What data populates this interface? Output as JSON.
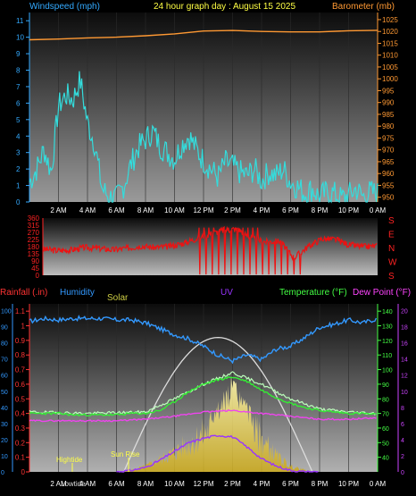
{
  "header": {
    "windspeed_label": "Windspeed (mph)",
    "title": "24 hour graph day : August 15 2025",
    "barometer_label": "Barometer (mb)"
  },
  "colors": {
    "wind_label": "#33aaff",
    "title": "#ffff44",
    "baro_label": "#ff9933",
    "wind_line": "#33dddd",
    "baro_line": "#ff9933",
    "direction": "#ff2222",
    "rain_label": "#ff3333",
    "humidity": "#3399ff",
    "solar": "#cccc44",
    "uv": "#9933ff",
    "temperature": "#44ff44",
    "dewpoint": "#ff44ff"
  },
  "legend": {
    "rainfall": "Rainfall (.in)",
    "humidity": "Humidity",
    "solar": "Solar",
    "uv": "UV",
    "temperature": "Temperature (°F)",
    "dewpoint": "Dew Point (°F)"
  },
  "annotations": {
    "hightide": "Hightide",
    "sunrise": "Sun Rise",
    "lowtide": "Lowtide"
  },
  "chart_data": [
    {
      "type": "line",
      "name_ref": "wind",
      "x_ticks": [
        "2 AM",
        "4 AM",
        "6 AM",
        "8 AM",
        "10 AM",
        "12 PM",
        "2 PM",
        "4 PM",
        "6 PM",
        "8 PM",
        "10 PM",
        "0 AM"
      ],
      "left_axis": {
        "label": "Windspeed (mph)",
        "ticks": [
          0,
          1,
          2,
          3,
          4,
          5,
          6,
          7,
          8,
          9,
          10,
          11
        ],
        "ylim": [
          0,
          11.5
        ]
      },
      "right_axis": {
        "label": "Barometer (mb)",
        "ticks": [
          950,
          955,
          960,
          965,
          970,
          975,
          980,
          985,
          990,
          995,
          1000,
          1005,
          1010,
          1015,
          1020,
          1025
        ],
        "ylim": [
          948,
          1028
        ]
      },
      "series": [
        {
          "id": "wind",
          "hours": [
            0,
            0.5,
            1,
            1.5,
            2,
            2.5,
            3,
            3.5,
            4,
            4.5,
            5,
            5.5,
            6,
            6.5,
            7,
            7.5,
            8,
            8.5,
            9,
            9.5,
            10,
            10.5,
            11,
            11.5,
            12,
            12.5,
            13,
            13.5,
            14,
            14.5,
            15,
            15.5,
            16,
            16.5,
            17,
            17.5,
            18,
            18.5,
            19,
            19.5,
            20,
            20.5,
            21,
            21.5,
            22,
            22.5,
            23,
            23.5,
            24
          ],
          "values": [
            1.2,
            2.0,
            3.2,
            1.8,
            5.8,
            6.5,
            6.2,
            7.4,
            4.8,
            3.5,
            0.8,
            0.3,
            0.2,
            1.0,
            2.3,
            3.3,
            3.8,
            4.3,
            3.4,
            3.0,
            2.6,
            3.5,
            4.0,
            3.2,
            2.5,
            2.0,
            1.5,
            2.4,
            2.2,
            1.8,
            1.6,
            2.0,
            1.3,
            1.8,
            1.6,
            2.0,
            1.2,
            0.9,
            0.5,
            0.8,
            0.3,
            0.6,
            0.5,
            0.2,
            0.4,
            0.8,
            0.3,
            0.6,
            0.5
          ]
        },
        {
          "id": "barometer",
          "hours": [
            0,
            2,
            4,
            6,
            8,
            10,
            12,
            14,
            16,
            18,
            20,
            22,
            24
          ],
          "values": [
            1016.5,
            1016.8,
            1017.3,
            1017.6,
            1018.2,
            1019.0,
            1020.2,
            1020.4,
            1020.0,
            1019.8,
            1019.8,
            1020.3,
            1020.5
          ]
        }
      ]
    },
    {
      "type": "scatter",
      "name_ref": "direction",
      "left_axis": {
        "ticks": [
          0,
          45,
          90,
          135,
          180,
          225,
          270,
          315,
          360
        ],
        "ylim": [
          0,
          360
        ]
      },
      "right_axis": {
        "ticks": [
          "S",
          "E",
          "N",
          "W",
          "S"
        ]
      },
      "series": [
        {
          "id": "direction",
          "hours": [
            0,
            1,
            2,
            3,
            4,
            5,
            6,
            7,
            8,
            9,
            10,
            11,
            12,
            13,
            14,
            15,
            16,
            17,
            18,
            19,
            20,
            21,
            22,
            23,
            24
          ],
          "values": [
            165,
            155,
            160,
            175,
            170,
            160,
            170,
            185,
            175,
            180,
            200,
            230,
            260,
            285,
            290,
            230,
            210,
            215,
            110,
            180,
            230,
            225,
            190,
            180,
            185
          ]
        }
      ]
    },
    {
      "type": "line",
      "name_ref": "weather",
      "left_axis": {
        "label": "Rainfall (.in)",
        "ticks": [
          0,
          0.1,
          0.2,
          0.3,
          0.4,
          0.5,
          0.6,
          0.7,
          0.8,
          0.9,
          1,
          1.1
        ],
        "ylim": [
          0,
          1.15
        ]
      },
      "outer_axis": {
        "label": "Humidity",
        "ticks": [
          0,
          10,
          20,
          30,
          40,
          50,
          60,
          70,
          80,
          90,
          100
        ]
      },
      "right_axis": {
        "label": "Temperature (°F)",
        "ticks": [
          40,
          50,
          60,
          70,
          80,
          90,
          100,
          110,
          120,
          130,
          140
        ],
        "ylim": [
          30,
          145
        ]
      },
      "outer_right_axis": {
        "ticks": [
          0,
          2,
          4,
          6,
          8,
          10,
          12,
          14,
          16,
          18,
          20
        ]
      },
      "series": [
        {
          "id": "humidity",
          "hours": [
            0,
            1,
            2,
            3,
            4,
            5,
            6,
            7,
            8,
            9,
            10,
            11,
            12,
            13,
            14,
            15,
            16,
            17,
            18,
            19,
            20,
            21,
            22,
            23,
            24
          ],
          "values": [
            1.03,
            1.05,
            1.04,
            1.05,
            1.05,
            1.05,
            1.04,
            1.04,
            1.02,
            0.98,
            0.94,
            0.91,
            0.86,
            0.8,
            0.76,
            0.8,
            0.77,
            0.84,
            0.86,
            0.92,
            0.99,
            1.01,
            1.04,
            1.02,
            1.05
          ]
        },
        {
          "id": "temperature",
          "hours": [
            0,
            1,
            2,
            3,
            4,
            5,
            6,
            7,
            8,
            9,
            10,
            11,
            12,
            13,
            14,
            15,
            16,
            17,
            18,
            19,
            20,
            21,
            22,
            23,
            24
          ],
          "values": [
            0.4,
            0.4,
            0.4,
            0.39,
            0.39,
            0.39,
            0.39,
            0.4,
            0.4,
            0.42,
            0.48,
            0.55,
            0.6,
            0.63,
            0.65,
            0.62,
            0.56,
            0.51,
            0.47,
            0.44,
            0.42,
            0.41,
            0.4,
            0.4,
            0.39
          ]
        },
        {
          "id": "dewpoint_hi",
          "hours": [
            0,
            4,
            8,
            10,
            12,
            14,
            16,
            18,
            20,
            22,
            24
          ],
          "values": [
            0.41,
            0.4,
            0.41,
            0.5,
            0.6,
            0.68,
            0.6,
            0.5,
            0.43,
            0.41,
            0.4
          ]
        },
        {
          "id": "dewpoint",
          "hours": [
            0,
            2,
            4,
            6,
            8,
            10,
            12,
            14,
            16,
            18,
            20,
            22,
            24
          ],
          "values": [
            0.35,
            0.35,
            0.35,
            0.35,
            0.36,
            0.38,
            0.41,
            0.42,
            0.4,
            0.38,
            0.36,
            0.36,
            0.37
          ]
        },
        {
          "id": "uv",
          "hours": [
            6,
            7,
            8,
            9,
            10,
            11,
            12,
            13,
            14,
            15,
            16,
            17,
            18,
            19,
            20
          ],
          "values": [
            0,
            0.01,
            0.03,
            0.08,
            0.14,
            0.2,
            0.23,
            0.25,
            0.24,
            0.17,
            0.09,
            0.04,
            0.01,
            0,
            0
          ]
        },
        {
          "id": "solar_peak",
          "hours": [
            6.5,
            8,
            10,
            12,
            13,
            14,
            15,
            16,
            17,
            18,
            19.5
          ],
          "values": [
            0,
            0.05,
            0.18,
            0.35,
            0.45,
            0.62,
            0.45,
            0.3,
            0.15,
            0.05,
            0
          ]
        }
      ]
    }
  ]
}
